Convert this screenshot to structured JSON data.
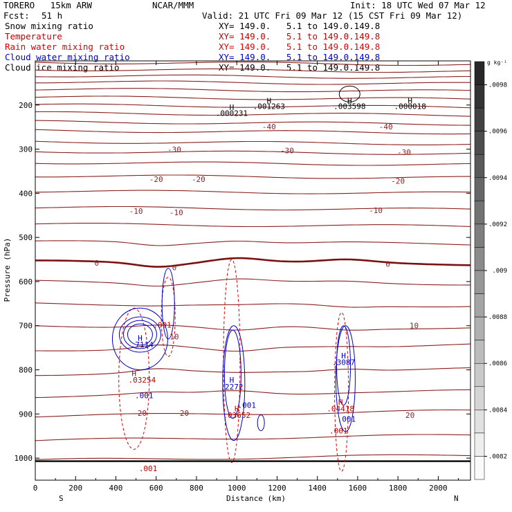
{
  "header": {
    "model": "TORERO   15km ARW",
    "org": "NCAR/MMM",
    "init": "Init: 18 UTC Wed 07 Mar 12",
    "fcst_label": "Fcst:",
    "fcst_value": "51 h",
    "valid": "Valid: 21 UTC Fri 09 Mar 12 (15 CST Fri 09 Mar 12)",
    "fields": [
      {
        "name": "Snow mixing ratio",
        "xy": "XY= 149.0.   5.1 to 149.0.149.8",
        "color": "#000000"
      },
      {
        "name": "Temperature",
        "xy": "XY= 149.0.   5.1 to 149.0.149.8",
        "color": "#c00000"
      },
      {
        "name": "Rain water mixing ratio",
        "xy": "XY= 149.0.   5.1 to 149.0.149.8",
        "color": "#e00000"
      },
      {
        "name": "Cloud water mixing ratio",
        "xy": "XY= 149.0.   5.1 to 149.0.149.8",
        "color": "#0000cc"
      },
      {
        "name": "Cloud ice mixing ratio",
        "xy": "XY= 149.0.   5.1 to 149.0.149.8",
        "color": "#000000"
      }
    ]
  },
  "chart_data": {
    "type": "cross-section contour",
    "xlabel": "Distance (km)",
    "ylabel": "Pressure (hPa)",
    "xlim": [
      0,
      2160
    ],
    "ylim": [
      1050,
      100
    ],
    "x_ticks": [
      0,
      200,
      400,
      600,
      800,
      1000,
      1200,
      1400,
      1600,
      1800,
      2000
    ],
    "y_ticks": [
      200,
      300,
      400,
      500,
      600,
      700,
      800,
      900,
      1000
    ],
    "endpoints": {
      "left": "S",
      "right": "N"
    },
    "colorbar": {
      "unit": "g kg⁻¹",
      "tick_labels": [
        ".0098",
        ".0096",
        ".0094",
        ".0092",
        ".009",
        ".0088",
        ".0086",
        ".0084",
        ".0082"
      ],
      "levels": [
        0.0081,
        0.0082,
        0.0083,
        0.0084,
        0.0085,
        0.0086,
        0.0087,
        0.0088,
        0.0089,
        0.009,
        0.0091,
        0.0092,
        0.0093,
        0.0094,
        0.0095,
        0.0096,
        0.0097,
        0.0098,
        0.0099
      ]
    },
    "temperature_labels": [
      {
        "text": "-40",
        "x": 1160,
        "p": 249
      },
      {
        "text": "-40",
        "x": 1740,
        "p": 249
      },
      {
        "text": "-30",
        "x": 690,
        "p": 301
      },
      {
        "text": "-30",
        "x": 1250,
        "p": 303
      },
      {
        "text": "-30",
        "x": 1830,
        "p": 307
      },
      {
        "text": "-20",
        "x": 600,
        "p": 368
      },
      {
        "text": "-20",
        "x": 810,
        "p": 368
      },
      {
        "text": "-20",
        "x": 1800,
        "p": 372
      },
      {
        "text": "-10",
        "x": 500,
        "p": 440
      },
      {
        "text": "-10",
        "x": 700,
        "p": 443
      },
      {
        "text": "-10",
        "x": 1690,
        "p": 439
      },
      {
        "text": "0",
        "x": 305,
        "p": 558
      },
      {
        "text": "0",
        "x": 690,
        "p": 568
      },
      {
        "text": "0",
        "x": 1750,
        "p": 560
      },
      {
        "text": "10",
        "x": 690,
        "p": 725
      },
      {
        "text": "10",
        "x": 1880,
        "p": 700
      },
      {
        "text": "20",
        "x": 530,
        "p": 898
      },
      {
        "text": "20",
        "x": 740,
        "p": 898
      },
      {
        "text": "20",
        "x": 1860,
        "p": 903
      }
    ],
    "extrema": [
      {
        "text": ".000231",
        "x": 975,
        "p": 218,
        "color": "#000000"
      },
      {
        "text": ".001263",
        "x": 1160,
        "p": 203,
        "color": "#000000"
      },
      {
        "text": ".003598",
        "x": 1560,
        "p": 203,
        "color": "#000000"
      },
      {
        "text": ".000018",
        "x": 1860,
        "p": 203,
        "color": "#000000"
      },
      {
        "text": ".7114",
        "x": 530,
        "p": 743,
        "color": "#0000cc"
      },
      {
        "text": ".03254",
        "x": 530,
        "p": 823,
        "color": "#c00000"
      },
      {
        "text": ".001",
        "x": 630,
        "p": 698,
        "color": "#c00000"
      },
      {
        "text": ".001",
        "x": 540,
        "p": 858,
        "color": "#0000cc"
      },
      {
        "text": ".2272",
        "x": 975,
        "p": 838,
        "color": "#0000cc"
      },
      {
        "text": ".001",
        "x": 1050,
        "p": 880,
        "color": "#0000cc"
      },
      {
        "text": ".03652",
        "x": 1000,
        "p": 903,
        "color": "#c00000"
      },
      {
        "text": ".3087",
        "x": 1530,
        "p": 783,
        "color": "#0000cc"
      },
      {
        "text": ".04418",
        "x": 1515,
        "p": 888,
        "color": "#c00000"
      },
      {
        "text": ".001",
        "x": 1545,
        "p": 911,
        "color": "#0000cc"
      },
      {
        "text": ".001",
        "x": 1505,
        "p": 938,
        "color": "#c00000"
      },
      {
        "text": ".001",
        "x": 560,
        "p": 1023,
        "color": "#c00000"
      }
    ]
  }
}
